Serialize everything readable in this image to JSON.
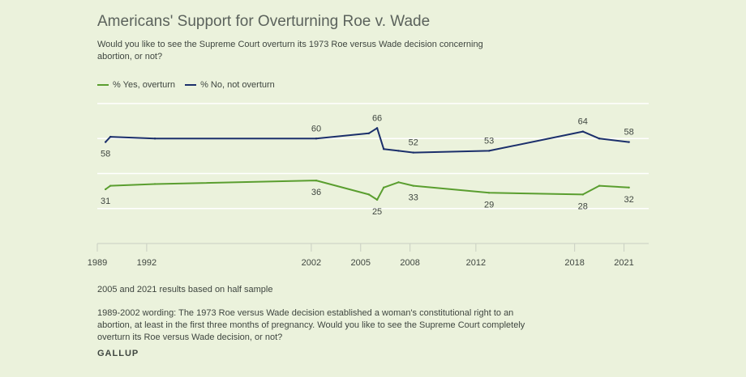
{
  "chart_data": {
    "type": "line",
    "title": "Americans' Support for Overturning Roe v. Wade",
    "subtitle": "Would you like to see the Supreme Court overturn its 1973 Roe versus Wade decision concerning abortion, or not?",
    "x_ticks": [
      "1989",
      "1992",
      "2002",
      "2005",
      "2008",
      "2012",
      "2018",
      "2021"
    ],
    "x_tick_values": [
      1989,
      1992,
      2002,
      2005,
      2008,
      2012,
      2018,
      2021
    ],
    "xlim": [
      1989,
      2022.5
    ],
    "ylim": [
      0,
      80
    ],
    "grid": true,
    "legend_position": "top-left",
    "series": [
      {
        "name": "% Yes, overturn",
        "color": "#5a9e2f",
        "x": [
          1989.5,
          1989.8,
          1992.5,
          2002.3,
          2005.5,
          2006.0,
          2006.4,
          2007.3,
          2008.2,
          2012.8,
          2018.5,
          2019.5,
          2021.3
        ],
        "y": [
          31,
          33,
          34,
          36,
          28,
          25,
          32,
          35,
          33,
          29,
          28,
          33,
          32
        ],
        "labels": [
          {
            "x": 1989.5,
            "y": 31,
            "text": "31",
            "pos": "below"
          },
          {
            "x": 2002.3,
            "y": 36,
            "text": "36",
            "pos": "below"
          },
          {
            "x": 2006.0,
            "y": 25,
            "text": "25",
            "pos": "below"
          },
          {
            "x": 2008.2,
            "y": 33,
            "text": "33",
            "pos": "below"
          },
          {
            "x": 2012.8,
            "y": 29,
            "text": "29",
            "pos": "below"
          },
          {
            "x": 2018.5,
            "y": 28,
            "text": "28",
            "pos": "below"
          },
          {
            "x": 2021.3,
            "y": 32,
            "text": "32",
            "pos": "below"
          }
        ]
      },
      {
        "name": "% No, not overturn",
        "color": "#1b2f6b",
        "x": [
          1989.5,
          1989.8,
          1992.5,
          2002.3,
          2005.5,
          2006.0,
          2006.4,
          2007.3,
          2008.2,
          2012.8,
          2018.5,
          2019.5,
          2021.3
        ],
        "y": [
          58,
          61,
          60,
          60,
          63,
          66,
          54,
          53,
          52,
          53,
          64,
          60,
          58
        ],
        "labels": [
          {
            "x": 1989.5,
            "y": 58,
            "text": "58",
            "pos": "below"
          },
          {
            "x": 2002.3,
            "y": 60,
            "text": "60",
            "pos": "above"
          },
          {
            "x": 2006.0,
            "y": 66,
            "text": "66",
            "pos": "above"
          },
          {
            "x": 2008.2,
            "y": 52,
            "text": "52",
            "pos": "above"
          },
          {
            "x": 2012.8,
            "y": 53,
            "text": "53",
            "pos": "above"
          },
          {
            "x": 2018.5,
            "y": 64,
            "text": "64",
            "pos": "above"
          },
          {
            "x": 2021.3,
            "y": 58,
            "text": "58",
            "pos": "above"
          }
        ]
      }
    ]
  },
  "notes": {
    "half_sample": "2005 and 2021 results based on half sample",
    "wording": "1989-2002 wording: The 1973 Roe versus Wade decision established a woman's constitutional right to an abortion, at least in the first three months of pregnancy. Would you like to see the Supreme Court completely overturn its Roe versus Wade decision, or not?"
  },
  "brand": "GALLUP",
  "colors": {
    "background": "#ebf2dc",
    "grid": "#ffffff",
    "axis": "#c9cfc2"
  }
}
